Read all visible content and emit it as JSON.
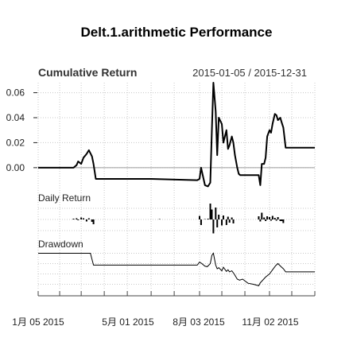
{
  "chart_data": {
    "type": "line",
    "title": "Delt.1.arithmetic Performance",
    "date_range": "2015-01-05 / 2015-12-31",
    "x_tick_labels": [
      "1月 05 2015",
      "5月 01 2015",
      "8月 03 2015",
      "11月 02 2015"
    ],
    "x_tick_dates": [
      "2015-01-05",
      "2015-05-01",
      "2015-08-03",
      "2015-11-02"
    ],
    "x_range": [
      "2015-01-05",
      "2015-12-31"
    ],
    "panels": [
      {
        "title": "Cumulative Return",
        "y_tick_labels": [
          "0.00",
          "0.02",
          "0.04",
          "0.06"
        ],
        "ylim": [
          -0.016,
          0.068
        ],
        "series": [
          {
            "x": [
              "2015-01-05",
              "2015-02-20",
              "2015-02-24",
              "2015-02-26",
              "2015-03-02",
              "2015-03-05",
              "2015-03-09",
              "2015-03-12",
              "2015-03-16",
              "2015-03-18",
              "2015-03-21",
              "2015-06-01",
              "2015-07-31",
              "2015-08-03",
              "2015-08-05",
              "2015-08-10",
              "2015-08-14",
              "2015-08-17",
              "2015-08-19",
              "2015-08-21",
              "2015-08-24",
              "2015-08-26",
              "2015-08-28",
              "2015-09-01",
              "2015-09-03",
              "2015-09-07",
              "2015-09-09",
              "2015-09-11",
              "2015-09-14",
              "2015-09-16",
              "2015-09-18",
              "2015-09-21",
              "2015-09-23",
              "2015-09-25",
              "2015-09-28",
              "2015-10-19",
              "2015-10-21",
              "2015-10-23",
              "2015-10-26",
              "2015-10-28",
              "2015-10-30",
              "2015-11-02",
              "2015-11-04",
              "2015-11-06",
              "2015-11-09",
              "2015-11-11",
              "2015-11-13",
              "2015-11-16",
              "2015-11-18",
              "2015-11-20",
              "2015-11-23",
              "2015-12-31"
            ],
            "y": [
              0.0,
              0.0,
              0.002,
              0.005,
              0.003,
              0.008,
              0.011,
              0.014,
              0.009,
              0.003,
              -0.009,
              -0.009,
              -0.01,
              -0.009,
              0.0,
              -0.014,
              -0.015,
              -0.012,
              0.03,
              0.068,
              0.045,
              0.01,
              0.04,
              0.035,
              0.02,
              0.03,
              0.015,
              0.018,
              0.025,
              0.02,
              0.01,
              0.0,
              -0.005,
              -0.006,
              -0.006,
              -0.006,
              -0.014,
              0.003,
              0.003,
              0.008,
              0.025,
              0.03,
              0.028,
              0.035,
              0.043,
              0.042,
              0.038,
              0.04,
              0.036,
              0.032,
              0.016,
              0.016
            ]
          }
        ]
      },
      {
        "title": "Daily Return",
        "returns": [
          {
            "x": "2015-02-20",
            "y": 0.002
          },
          {
            "x": "2015-02-24",
            "y": 0.003
          },
          {
            "x": "2015-02-26",
            "y": -0.002
          },
          {
            "x": "2015-03-02",
            "y": 0.005
          },
          {
            "x": "2015-03-05",
            "y": 0.003
          },
          {
            "x": "2015-03-09",
            "y": -0.005
          },
          {
            "x": "2015-03-12",
            "y": 0.003
          },
          {
            "x": "2015-03-16",
            "y": -0.006
          },
          {
            "x": "2015-03-18",
            "y": -0.012
          },
          {
            "x": "2015-06-12",
            "y": 0.001
          },
          {
            "x": "2015-08-03",
            "y": 0.009
          },
          {
            "x": "2015-08-05",
            "y": -0.014
          },
          {
            "x": "2015-08-10",
            "y": 0.001
          },
          {
            "x": "2015-08-14",
            "y": 0.002
          },
          {
            "x": "2015-08-17",
            "y": 0.04
          },
          {
            "x": "2015-08-19",
            "y": 0.025
          },
          {
            "x": "2015-08-21",
            "y": -0.035
          },
          {
            "x": "2015-08-24",
            "y": 0.03
          },
          {
            "x": "2015-08-26",
            "y": -0.02
          },
          {
            "x": "2015-08-28",
            "y": 0.012
          },
          {
            "x": "2015-09-01",
            "y": -0.015
          },
          {
            "x": "2015-09-03",
            "y": 0.01
          },
          {
            "x": "2015-09-07",
            "y": -0.014
          },
          {
            "x": "2015-09-09",
            "y": 0.007
          },
          {
            "x": "2015-09-11",
            "y": -0.008
          },
          {
            "x": "2015-09-14",
            "y": 0.005
          },
          {
            "x": "2015-09-16",
            "y": -0.01
          },
          {
            "x": "2015-10-19",
            "y": 0.008
          },
          {
            "x": "2015-10-21",
            "y": -0.005
          },
          {
            "x": "2015-10-23",
            "y": 0.017
          },
          {
            "x": "2015-10-26",
            "y": 0.005
          },
          {
            "x": "2015-10-28",
            "y": -0.004
          },
          {
            "x": "2015-10-30",
            "y": 0.008
          },
          {
            "x": "2015-11-02",
            "y": 0.006
          },
          {
            "x": "2015-11-04",
            "y": -0.003
          },
          {
            "x": "2015-11-06",
            "y": 0.009
          },
          {
            "x": "2015-11-09",
            "y": 0.004
          },
          {
            "x": "2015-11-11",
            "y": -0.003
          },
          {
            "x": "2015-11-13",
            "y": 0.006
          },
          {
            "x": "2015-11-16",
            "y": -0.004
          },
          {
            "x": "2015-11-18",
            "y": -0.004
          },
          {
            "x": "2015-11-20",
            "y": -0.009
          }
        ]
      },
      {
        "title": "Drawdown",
        "x": [
          "2015-01-05",
          "2015-03-14",
          "2015-03-18",
          "2015-07-31",
          "2015-08-03",
          "2015-08-06",
          "2015-08-10",
          "2015-08-13",
          "2015-08-17",
          "2015-08-19",
          "2015-08-21",
          "2015-08-24",
          "2015-08-26",
          "2015-08-28",
          "2015-09-01",
          "2015-09-03",
          "2015-09-07",
          "2015-09-09",
          "2015-09-11",
          "2015-09-14",
          "2015-09-17",
          "2015-09-21",
          "2015-09-24",
          "2015-09-28",
          "2015-10-05",
          "2015-10-12",
          "2015-10-19",
          "2015-10-21",
          "2015-10-23",
          "2015-10-28",
          "2015-11-02",
          "2015-11-06",
          "2015-11-10",
          "2015-11-13",
          "2015-11-17",
          "2015-11-20",
          "2015-11-23",
          "2015-12-31"
        ],
        "y": [
          0.0,
          0.0,
          -0.023,
          -0.023,
          -0.017,
          -0.02,
          -0.025,
          -0.026,
          -0.02,
          -0.004,
          0.0,
          -0.023,
          -0.03,
          -0.028,
          -0.034,
          -0.027,
          -0.035,
          -0.032,
          -0.036,
          -0.034,
          -0.04,
          -0.05,
          -0.052,
          -0.05,
          -0.058,
          -0.06,
          -0.063,
          -0.057,
          -0.054,
          -0.046,
          -0.04,
          -0.032,
          -0.024,
          -0.02,
          -0.026,
          -0.03,
          -0.036,
          -0.036
        ],
        "ylim": [
          -0.07,
          0.01
        ]
      }
    ],
    "grid": true
  }
}
